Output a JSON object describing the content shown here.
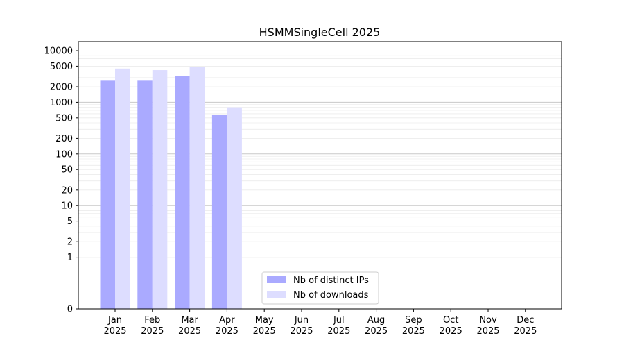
{
  "chart_data": {
    "type": "bar",
    "title": "HSMMSingleCell 2025",
    "xlabel": "",
    "ylabel": "",
    "yscale": "symlog",
    "ylim": [
      0,
      10000
    ],
    "yticks": [
      0,
      1,
      2,
      5,
      10,
      20,
      50,
      100,
      200,
      500,
      1000,
      2000,
      5000,
      10000
    ],
    "categories": [
      "Jan\n2025",
      "Feb\n2025",
      "Mar\n2025",
      "Apr\n2025",
      "May\n2025",
      "Jun\n2025",
      "Jul\n2025",
      "Aug\n2025",
      "Sep\n2025",
      "Oct\n2025",
      "Nov\n2025",
      "Dec\n2025"
    ],
    "series": [
      {
        "name": "Nb of distinct IPs",
        "color": "#aaaaff",
        "values": [
          2700,
          2700,
          3200,
          580,
          0,
          0,
          0,
          0,
          0,
          0,
          0,
          0
        ]
      },
      {
        "name": "Nb of downloads",
        "color": "#ddddff",
        "values": [
          4500,
          4200,
          4800,
          800,
          0,
          0,
          0,
          0,
          0,
          0,
          0,
          0
        ]
      }
    ],
    "legend": "lower-center",
    "grid": true
  }
}
